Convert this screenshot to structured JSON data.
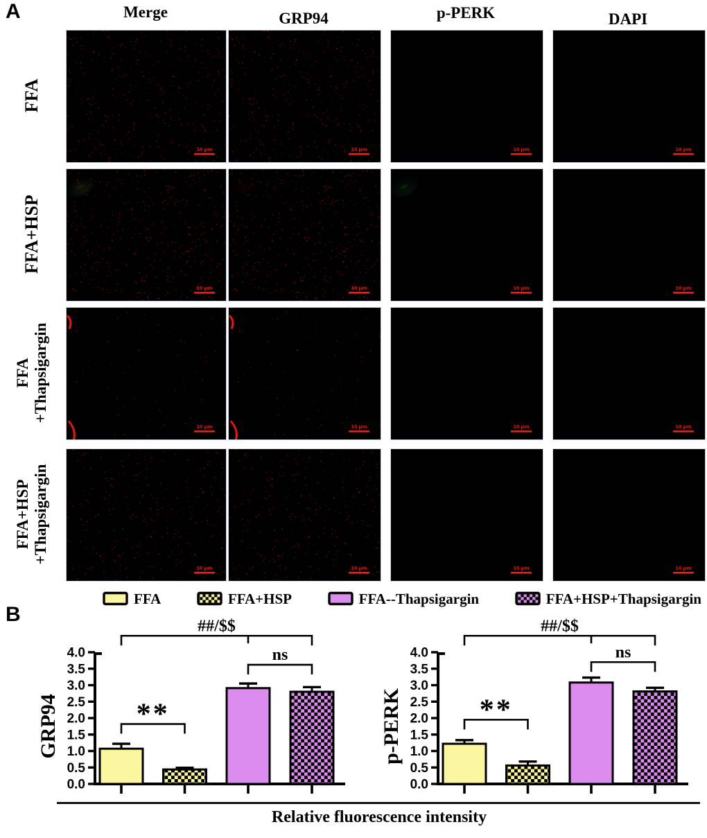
{
  "panel_a": {
    "label": "A",
    "column_headers": [
      "Merge",
      "GRP94",
      "p-PERK",
      "DAPI"
    ],
    "scale_bar_label": "10 μm",
    "rows": [
      {
        "label_lines": [
          "FFA"
        ]
      },
      {
        "label_lines": [
          "FFA+HSP"
        ]
      },
      {
        "label_lines": [
          "FFA",
          "+Thapsigargin"
        ]
      },
      {
        "label_lines": [
          "FFA+HSP",
          "+Thapsigargin"
        ]
      }
    ]
  },
  "legend": {
    "items": [
      {
        "label": "FFA",
        "fill": "#FAF7A0",
        "pattern": "solid"
      },
      {
        "label": "FFA+HSP",
        "fill": "#FAF7A0",
        "pattern": "checker"
      },
      {
        "label": "FFA--Thapsigargin",
        "fill": "#DC8BEE",
        "pattern": "solid"
      },
      {
        "label": "FFA+HSP+Thapsigargin",
        "fill": "#DC8BEE",
        "pattern": "checker"
      }
    ]
  },
  "panel_b": {
    "label": "B",
    "xlabel": "Relative fluorescence intensity"
  },
  "chart_data": [
    {
      "type": "bar",
      "title": "",
      "ylabel": "GRP94",
      "xlabel": "",
      "categories": [
        "FFA",
        "FFA+HSP",
        "FFA--Thapsigargin",
        "FFA+HSP+Thapsigargin"
      ],
      "values": [
        1.07,
        0.44,
        2.91,
        2.8
      ],
      "errors": [
        0.15,
        0.05,
        0.14,
        0.14
      ],
      "ylim": [
        0,
        4.0
      ],
      "ytick_step": 0.5,
      "yticks": [
        "0.0",
        "0.5",
        "1.0",
        "1.5",
        "2.0",
        "2.5",
        "3.0",
        "3.5",
        "4.0"
      ],
      "grid": false,
      "annotations": [
        {
          "label": "**",
          "from": 0,
          "to": 1,
          "y": 1.82
        },
        {
          "label": "ns",
          "from": 2,
          "to": 3,
          "y": 3.62
        },
        {
          "label": "##/$$",
          "from": 0,
          "to": 3,
          "mid_tick": 2,
          "y": 4.5
        }
      ]
    },
    {
      "type": "bar",
      "title": "",
      "ylabel": "p-PERK",
      "xlabel": "",
      "categories": [
        "FFA",
        "FFA+HSP",
        "FFA--Thapsigargin",
        "FFA+HSP+Thapsigargin"
      ],
      "values": [
        1.22,
        0.56,
        3.08,
        2.81
      ],
      "errors": [
        0.11,
        0.12,
        0.15,
        0.11
      ],
      "ylim": [
        0,
        4.0
      ],
      "ytick_step": 0.5,
      "yticks": [
        "0.0",
        "0.5",
        "1.0",
        "1.5",
        "2.0",
        "2.5",
        "3.0",
        "3.5",
        "4.0"
      ],
      "grid": false,
      "annotations": [
        {
          "label": "**",
          "from": 0,
          "to": 1,
          "y": 1.95
        },
        {
          "label": "ns",
          "from": 2,
          "to": 3,
          "y": 3.7
        },
        {
          "label": "##/$$",
          "from": 0,
          "to": 3,
          "mid_tick": 2,
          "y": 4.5
        }
      ]
    }
  ],
  "colors": {
    "yellow": "#FAF7A0",
    "purple": "#DC8BEE",
    "scale_bar_red": "#FF2020",
    "axis": "#000000"
  },
  "microscopy": {
    "rows": [
      {
        "seed": 11,
        "nuclei": 26,
        "red": {
          "halo": 0.1,
          "speckles": 430
        },
        "green": {
          "core": 0.5,
          "halo": 0.16
        },
        "green_nuclei": [
          4,
          17
        ],
        "highlights": []
      },
      {
        "seed": 22,
        "nuclei": 25,
        "red": {
          "halo": 0.07,
          "speckles": 520
        },
        "green": {
          "core": 0.3,
          "halo": 0.12
        },
        "green_nuclei": [
          6
        ],
        "highlights": []
      },
      {
        "seed": 33,
        "nuclei": 0,
        "nuclei_at": [
          [
            0.28,
            0.25
          ],
          [
            0.55,
            0.53
          ],
          [
            0.65,
            0.78
          ]
        ],
        "red": {
          "halo": 0,
          "speckles": 80,
          "streak": true,
          "dots": [
            [
              0.42,
              0.72
            ],
            [
              0.24,
              0.63
            ],
            [
              0.48,
              0.78
            ],
            [
              0.35,
              0.4
            ]
          ]
        },
        "green": {
          "core": 0,
          "halo": 0
        },
        "green_nuclei": [],
        "highlights": [
          {
            "x": 0.27,
            "y": 0.24,
            "r": 15,
            "green": 1.0,
            "red": 0.75
          },
          {
            "x": 0.12,
            "y": 0.45,
            "r": 14,
            "green": 0.8,
            "red": 0.55
          },
          {
            "x": 0.55,
            "y": 0.52,
            "r": 11,
            "green": 0.4,
            "red": 0.4
          },
          {
            "x": 0.65,
            "y": 0.78,
            "r": 10,
            "green": 0.35,
            "red": 0.32
          }
        ]
      },
      {
        "seed": 44,
        "nuclei": 26,
        "red": {
          "halo": 0.12,
          "speckles": 380
        },
        "green": {
          "core": 0.55,
          "halo": 0.18
        },
        "green_nuclei": [
          9
        ],
        "highlights": [
          {
            "x": 0.38,
            "y": 0.12,
            "r": 13,
            "green": 0.95,
            "red": 0.85
          }
        ]
      }
    ]
  }
}
